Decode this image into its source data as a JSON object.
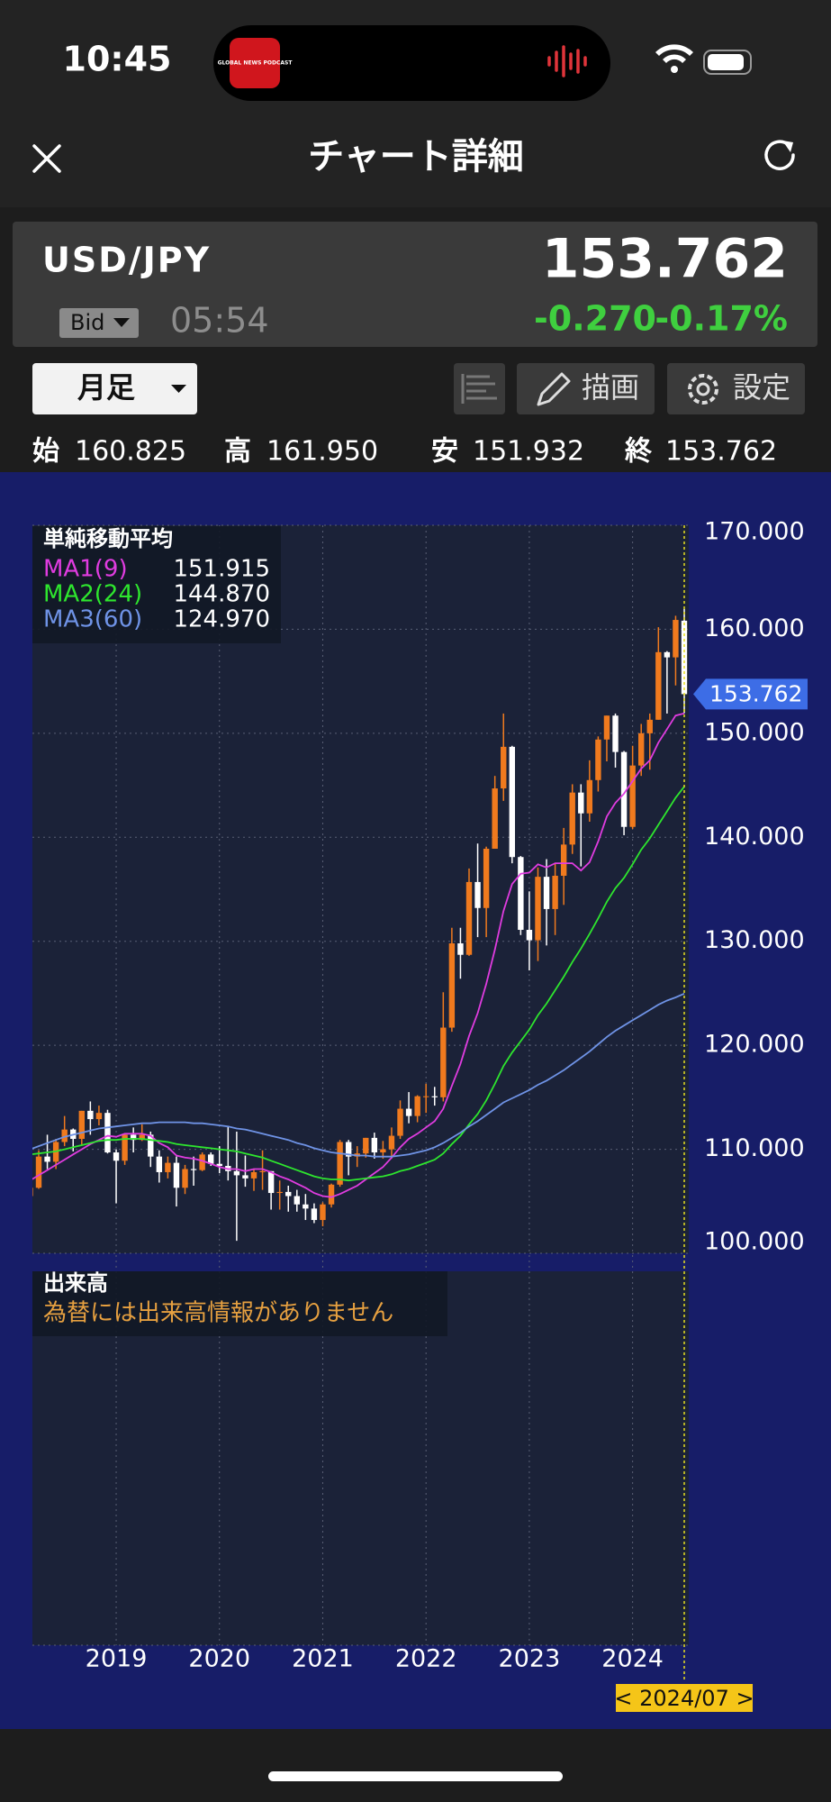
{
  "status_bar": {
    "time": "10:45",
    "island_text": "GLOBAL NEWS PODCAST"
  },
  "header": {
    "title": "チャート詳細"
  },
  "quote": {
    "symbol": "USD/JPY",
    "price": "153.762",
    "side": "Bid",
    "time": "05:54",
    "change": "-0.270",
    "change_pct": "-0.17%"
  },
  "toolbar": {
    "period": "月足",
    "draw": "描画",
    "settings": "設定"
  },
  "ohlc": [
    {
      "label": "始",
      "value": "160.825"
    },
    {
      "label": "高",
      "value": "161.950"
    },
    {
      "label": "安",
      "value": "151.932"
    },
    {
      "label": "終",
      "value": "153.762"
    }
  ],
  "chart_data": {
    "type": "candlestick",
    "legend_title": "単純移動平均",
    "categories": [
      null,
      null,
      null,
      null,
      null,
      null,
      null,
      null,
      null,
      null,
      "2019",
      null,
      null,
      null,
      null,
      null,
      null,
      null,
      null,
      null,
      null,
      null,
      "2020",
      null,
      null,
      null,
      null,
      null,
      null,
      null,
      null,
      null,
      null,
      null,
      "2021",
      null,
      null,
      null,
      null,
      null,
      null,
      null,
      null,
      null,
      null,
      null,
      "2022",
      null,
      null,
      null,
      null,
      null,
      null,
      null,
      null,
      null,
      null,
      null,
      "2023",
      null,
      null,
      null,
      null,
      null,
      null,
      null,
      null,
      null,
      null,
      null,
      "2024",
      null,
      null,
      null,
      null,
      null,
      null
    ],
    "candles": [
      [
        105.5,
        107.0,
        104.6,
        106.3
      ],
      [
        106.3,
        109.9,
        106.2,
        109.3
      ],
      [
        109.3,
        111.4,
        108.1,
        108.8
      ],
      [
        108.8,
        111.0,
        108.1,
        110.7
      ],
      [
        110.7,
        113.2,
        110.3,
        111.9
      ],
      [
        111.9,
        112.0,
        109.8,
        111.0
      ],
      [
        111.0,
        113.7,
        110.4,
        113.7
      ],
      [
        113.7,
        114.6,
        111.4,
        112.9
      ],
      [
        112.9,
        114.2,
        112.3,
        113.5
      ],
      [
        113.5,
        113.8,
        109.6,
        109.7
      ],
      [
        109.7,
        110.0,
        104.8,
        108.9
      ],
      [
        108.9,
        111.5,
        108.5,
        111.4
      ],
      [
        111.4,
        112.1,
        109.7,
        110.9
      ],
      [
        110.9,
        112.4,
        110.8,
        111.4
      ],
      [
        111.4,
        111.7,
        108.3,
        109.3
      ],
      [
        109.3,
        109.9,
        106.8,
        107.8
      ],
      [
        107.8,
        109.3,
        107.2,
        108.7
      ],
      [
        108.7,
        109.3,
        104.5,
        106.3
      ],
      [
        106.3,
        108.5,
        105.7,
        108.1
      ],
      [
        108.1,
        109.3,
        106.5,
        108.0
      ],
      [
        108.0,
        109.7,
        107.9,
        109.5
      ],
      [
        109.5,
        109.7,
        108.4,
        108.6
      ],
      [
        108.6,
        110.3,
        107.7,
        108.4
      ],
      [
        108.4,
        112.2,
        107.0,
        107.9
      ],
      [
        107.9,
        111.7,
        101.2,
        107.5
      ],
      [
        107.5,
        109.4,
        106.4,
        107.2
      ],
      [
        107.2,
        108.1,
        106.0,
        107.8
      ],
      [
        107.8,
        109.9,
        106.1,
        107.9
      ],
      [
        107.9,
        107.9,
        104.2,
        105.8
      ],
      [
        105.8,
        107.0,
        104.2,
        105.9
      ],
      [
        105.9,
        106.5,
        104.0,
        105.5
      ],
      [
        105.5,
        106.1,
        104.0,
        104.7
      ],
      [
        104.7,
        105.7,
        103.2,
        104.3
      ],
      [
        104.3,
        104.8,
        102.9,
        103.2
      ],
      [
        103.2,
        104.9,
        102.6,
        104.7
      ],
      [
        104.7,
        106.7,
        104.4,
        106.6
      ],
      [
        106.6,
        110.9,
        106.4,
        110.7
      ],
      [
        110.7,
        110.9,
        107.5,
        109.3
      ],
      [
        109.3,
        110.3,
        108.3,
        109.6
      ],
      [
        109.6,
        111.1,
        109.2,
        111.1
      ],
      [
        111.1,
        111.6,
        109.1,
        109.7
      ],
      [
        109.7,
        110.8,
        109.1,
        110.0
      ],
      [
        110.0,
        112.1,
        109.1,
        111.3
      ],
      [
        111.3,
        114.7,
        111.0,
        113.9
      ],
      [
        113.9,
        115.5,
        112.5,
        113.2
      ],
      [
        113.2,
        115.2,
        112.6,
        115.1
      ],
      [
        115.1,
        116.3,
        113.5,
        115.1
      ],
      [
        115.1,
        116.0,
        114.2,
        115.0
      ],
      [
        115.0,
        125.1,
        114.6,
        121.7
      ],
      [
        121.7,
        131.3,
        121.3,
        129.8
      ],
      [
        129.8,
        131.3,
        126.4,
        128.7
      ],
      [
        128.7,
        137.0,
        128.6,
        135.7
      ],
      [
        135.7,
        139.4,
        130.4,
        133.2
      ],
      [
        133.2,
        139.1,
        130.4,
        138.9
      ],
      [
        138.9,
        145.9,
        138.9,
        144.7
      ],
      [
        144.7,
        151.9,
        143.5,
        148.7
      ],
      [
        148.7,
        148.8,
        137.5,
        138.1
      ],
      [
        138.1,
        138.2,
        130.6,
        131.1
      ],
      [
        131.1,
        134.8,
        127.2,
        130.1
      ],
      [
        130.1,
        137.1,
        128.1,
        136.2
      ],
      [
        136.2,
        137.9,
        129.6,
        133.1
      ],
      [
        133.1,
        137.5,
        130.6,
        136.3
      ],
      [
        136.3,
        140.9,
        133.5,
        139.3
      ],
      [
        139.3,
        145.1,
        138.4,
        144.3
      ],
      [
        144.3,
        145.1,
        137.2,
        142.3
      ],
      [
        142.3,
        147.4,
        141.5,
        145.5
      ],
      [
        145.5,
        149.7,
        144.4,
        149.4
      ],
      [
        149.4,
        151.7,
        147.3,
        151.7
      ],
      [
        151.7,
        151.9,
        146.7,
        148.2
      ],
      [
        148.2,
        148.3,
        140.2,
        141.0
      ],
      [
        141.0,
        148.8,
        140.8,
        146.9
      ],
      [
        146.9,
        150.9,
        145.9,
        150.0
      ],
      [
        150.0,
        151.9,
        146.5,
        151.3
      ],
      [
        151.3,
        160.2,
        151.3,
        157.8
      ],
      [
        157.8,
        157.9,
        151.9,
        157.3
      ],
      [
        157.3,
        161.3,
        154.6,
        160.9
      ],
      [
        160.825,
        161.95,
        151.932,
        153.762
      ]
    ],
    "up_color": "#f07a1e",
    "down_color": "#ffffff",
    "series": [
      {
        "name": "MA1(9)",
        "color": "#e03ce0",
        "current_label": "151.915",
        "values": [
          107.0,
          107.5,
          108.0,
          108.5,
          109.0,
          109.5,
          110.0,
          110.5,
          110.9,
          111.3,
          111.2,
          111.5,
          111.5,
          111.5,
          111.3,
          110.6,
          110.2,
          109.4,
          109.2,
          109.1,
          108.9,
          108.6,
          108.3,
          108.1,
          108.1,
          107.9,
          108.1,
          108.1,
          107.8,
          107.4,
          107.1,
          106.7,
          106.3,
          105.8,
          105.5,
          105.4,
          105.7,
          106.1,
          106.5,
          107.1,
          107.7,
          108.3,
          109.2,
          110.2,
          111.0,
          111.5,
          112.1,
          112.7,
          113.9,
          116.1,
          118.2,
          120.9,
          123.1,
          125.9,
          129.2,
          132.9,
          135.5,
          136.5,
          136.6,
          137.4,
          137.1,
          137.5,
          137.5,
          137.5,
          136.8,
          137.6,
          139.6,
          142.0,
          143.3,
          144.2,
          145.4,
          146.6,
          147.4,
          149.1,
          150.4,
          151.7,
          151.915
        ]
      },
      {
        "name": "MA2(24)",
        "color": "#2ee62e",
        "current_label": "144.870",
        "values": [
          109.5,
          109.6,
          109.7,
          109.8,
          110.0,
          110.2,
          110.4,
          110.6,
          110.8,
          110.9,
          110.9,
          111.0,
          111.0,
          111.0,
          110.9,
          110.8,
          110.7,
          110.5,
          110.4,
          110.3,
          110.2,
          110.1,
          110.0,
          109.9,
          109.8,
          109.6,
          109.4,
          109.2,
          108.9,
          108.6,
          108.3,
          108.0,
          107.7,
          107.4,
          107.2,
          107.1,
          107.1,
          107.0,
          107.1,
          107.2,
          107.3,
          107.4,
          107.6,
          107.9,
          108.1,
          108.4,
          108.7,
          109.0,
          109.6,
          110.5,
          111.3,
          112.4,
          113.4,
          114.7,
          116.3,
          118.0,
          119.3,
          120.4,
          121.5,
          122.9,
          124.0,
          125.3,
          126.6,
          128.0,
          129.3,
          130.7,
          132.2,
          133.8,
          135.1,
          136.1,
          137.4,
          138.8,
          139.9,
          141.2,
          142.5,
          143.8,
          144.87
        ]
      },
      {
        "name": "MA3(60)",
        "color": "#6f93e6",
        "current_label": "124.970",
        "values": [
          110.0,
          110.3,
          110.6,
          110.9,
          111.2,
          111.4,
          111.6,
          111.8,
          112.0,
          112.1,
          112.2,
          112.3,
          112.4,
          112.5,
          112.5,
          112.6,
          112.6,
          112.6,
          112.6,
          112.5,
          112.5,
          112.4,
          112.3,
          112.2,
          112.0,
          111.9,
          111.7,
          111.5,
          111.3,
          111.1,
          110.9,
          110.6,
          110.4,
          110.1,
          109.9,
          109.7,
          109.6,
          109.5,
          109.4,
          109.4,
          109.3,
          109.3,
          109.3,
          109.4,
          109.5,
          109.7,
          109.9,
          110.2,
          110.6,
          111.1,
          111.6,
          112.2,
          112.7,
          113.3,
          113.9,
          114.5,
          114.9,
          115.3,
          115.7,
          116.2,
          116.6,
          117.1,
          117.6,
          118.2,
          118.8,
          119.4,
          120.1,
          120.8,
          121.4,
          121.9,
          122.4,
          122.9,
          123.4,
          123.9,
          124.3,
          124.6,
          124.97
        ]
      }
    ],
    "ylim": [
      100,
      170
    ],
    "yticks": [
      {
        "value": 100,
        "label": "100.000"
      },
      {
        "value": 110,
        "label": "110.000"
      },
      {
        "value": 120,
        "label": "120.000"
      },
      {
        "value": 130,
        "label": "130.000"
      },
      {
        "value": 140,
        "label": "140.000"
      },
      {
        "value": 150,
        "label": "150.000"
      },
      {
        "value": 160,
        "label": "160.000"
      },
      {
        "value": 170,
        "label": "170.000"
      }
    ],
    "grid": true,
    "cursor_label": "< 2024/07 >"
  },
  "volume": {
    "title": "出来高",
    "message": "為替には出来高情報がありません"
  }
}
